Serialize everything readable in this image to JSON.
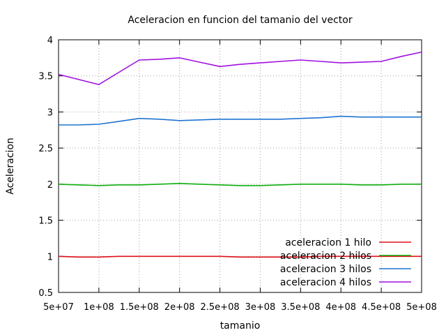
{
  "chart_data": {
    "type": "line",
    "title": "Aceleracion en funcion del tamanio del vector",
    "xlabel": "tamanio",
    "ylabel": "Aceleracion",
    "xlim": [
      50000000,
      500000000
    ],
    "ylim": [
      0.5,
      4
    ],
    "grid": true,
    "legend_position": "bottom-right",
    "x": [
      50000000,
      75000000,
      100000000,
      125000000,
      150000000,
      175000000,
      200000000,
      225000000,
      250000000,
      275000000,
      300000000,
      325000000,
      350000000,
      375000000,
      400000000,
      425000000,
      450000000,
      475000000,
      500000000
    ],
    "x_ticks": [
      50000000,
      100000000,
      150000000,
      200000000,
      250000000,
      300000000,
      350000000,
      400000000,
      450000000,
      500000000
    ],
    "x_tick_labels": [
      "5e+07",
      "1e+08",
      "1.5e+08",
      "2e+08",
      "2.5e+08",
      "3e+08",
      "3.5e+08",
      "4e+08",
      "4.5e+08",
      "5e+08"
    ],
    "y_ticks": [
      0.5,
      1,
      1.5,
      2,
      2.5,
      3,
      3.5,
      4
    ],
    "y_tick_labels": [
      "0.5",
      "1",
      "1.5",
      "2",
      "2.5",
      "3",
      "3.5",
      "4"
    ],
    "series": [
      {
        "name": "aceleracion 1 hilo",
        "color": "#e0101a",
        "values": [
          1.0,
          0.99,
          0.99,
          1.0,
          1.0,
          1.0,
          1.0,
          1.0,
          1.0,
          0.99,
          0.99,
          0.99,
          0.99,
          1.0,
          1.0,
          1.0,
          1.0,
          1.0,
          1.0
        ]
      },
      {
        "name": "aceleracion 2 hilos",
        "color": "#10b010",
        "values": [
          2.0,
          1.99,
          1.98,
          1.99,
          1.99,
          2.0,
          2.01,
          2.0,
          1.99,
          1.98,
          1.98,
          1.99,
          2.0,
          2.0,
          2.0,
          1.99,
          1.99,
          2.0,
          2.0
        ]
      },
      {
        "name": "aceleracion 3 hilos",
        "color": "#1e73d0",
        "values": [
          2.82,
          2.82,
          2.83,
          2.87,
          2.91,
          2.9,
          2.88,
          2.89,
          2.9,
          2.9,
          2.9,
          2.9,
          2.91,
          2.92,
          2.94,
          2.93,
          2.93,
          2.93,
          2.93
        ]
      },
      {
        "name": "aceleracion 4 hilos",
        "color": "#a010e0",
        "values": [
          3.52,
          3.45,
          3.38,
          3.55,
          3.72,
          3.73,
          3.75,
          3.69,
          3.63,
          3.66,
          3.68,
          3.7,
          3.72,
          3.7,
          3.68,
          3.69,
          3.7,
          3.77,
          3.83
        ]
      }
    ]
  }
}
